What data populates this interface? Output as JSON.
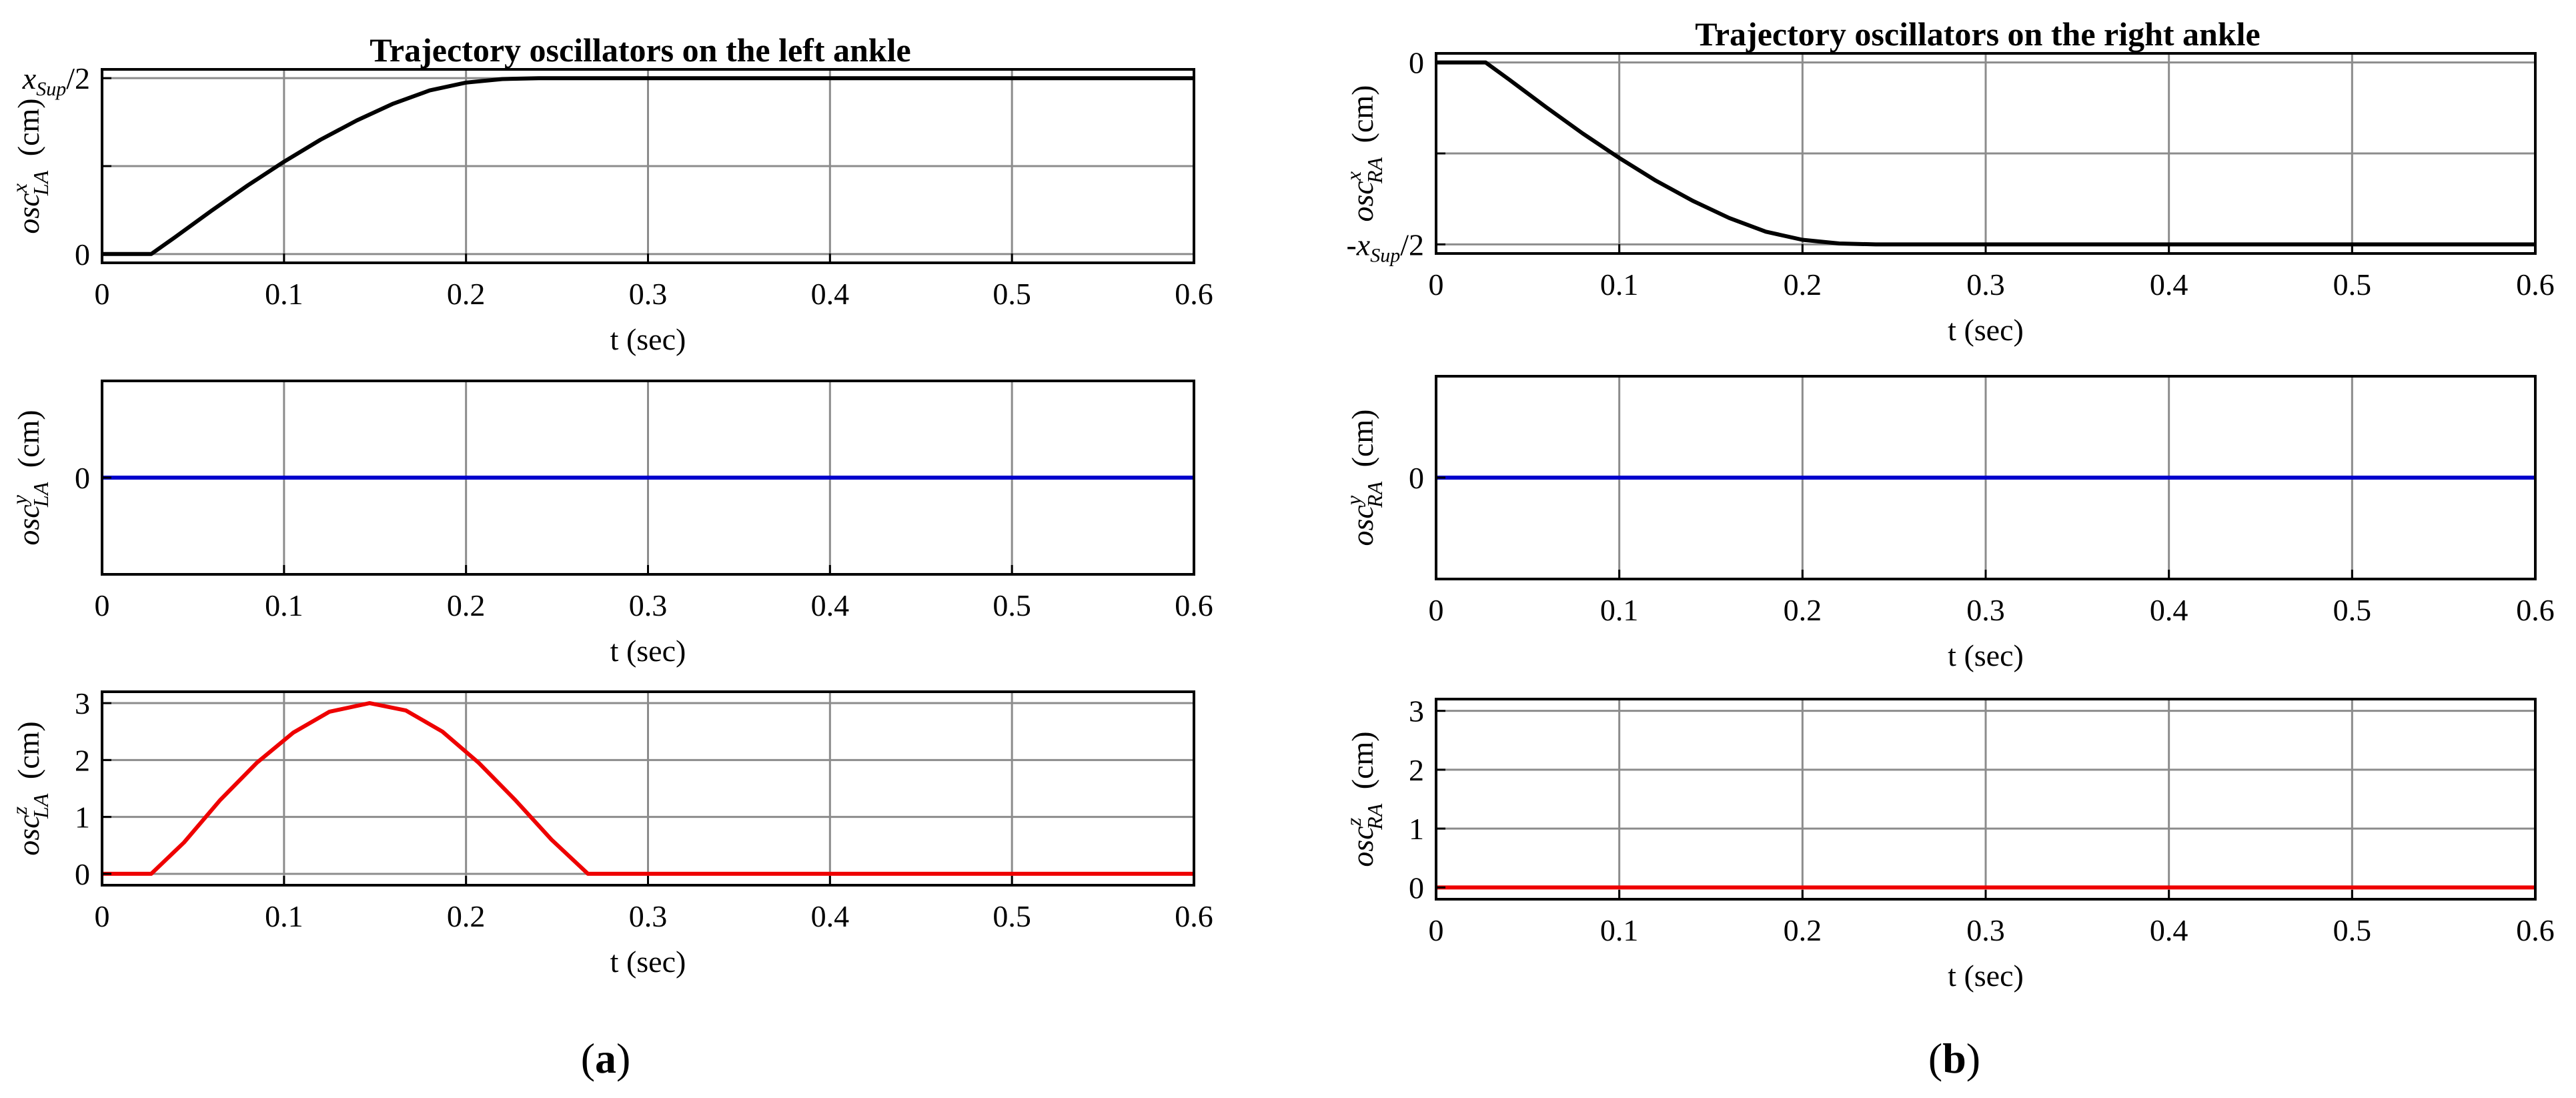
{
  "titles": {
    "left": "Trajectory oscillators on the left ankle",
    "right": "Trajectory oscillators on the right ankle"
  },
  "panel_labels": {
    "left": "a",
    "right": "b"
  },
  "chart_data": [
    {
      "type": "line",
      "title": "Trajectory oscillators on the left ankle",
      "xlabel": "t (sec)",
      "ylabel": {
        "base": "osc",
        "sup": "x",
        "sub": "LA",
        "unit": "(cm)"
      },
      "xlim": [
        0,
        0.6
      ],
      "ylim": [
        -0.05,
        1.05
      ],
      "grid": true,
      "xticks": [
        0,
        0.1,
        0.2,
        0.3,
        0.4,
        0.5,
        0.6
      ],
      "xtick_labels": [
        "0",
        "0.1",
        "0.2",
        "0.3",
        "0.4",
        "0.5",
        "0.6"
      ],
      "yticks": [
        0,
        0.5,
        1
      ],
      "ytick_labels": [
        {
          "text": "0"
        },
        {
          "text": ""
        },
        {
          "prefix": "",
          "var": "x",
          "sub": "Sup",
          "suffix": "/2"
        }
      ],
      "gridlines_y": [
        0,
        0.5,
        1
      ],
      "series": [
        {
          "color": "#000000",
          "x": [
            0,
            0.027,
            0.04,
            0.06,
            0.08,
            0.1,
            0.12,
            0.14,
            0.16,
            0.18,
            0.2,
            0.22,
            0.24,
            0.26,
            0.265,
            0.3,
            0.4,
            0.5,
            0.6
          ],
          "y": [
            0,
            0,
            0.095,
            0.245,
            0.39,
            0.525,
            0.65,
            0.76,
            0.855,
            0.93,
            0.975,
            0.995,
            1.0,
            1.0,
            1.0,
            1.0,
            1.0,
            1.0,
            1.0
          ]
        }
      ]
    },
    {
      "type": "line",
      "xlabel": "t (sec)",
      "ylabel": {
        "base": "osc",
        "sup": "y",
        "sub": "LA",
        "unit": "(cm)"
      },
      "xlim": [
        0,
        0.6
      ],
      "ylim": [
        -1,
        1
      ],
      "grid": true,
      "xticks": [
        0,
        0.1,
        0.2,
        0.3,
        0.4,
        0.5,
        0.6
      ],
      "xtick_labels": [
        "0",
        "0.1",
        "0.2",
        "0.3",
        "0.4",
        "0.5",
        "0.6"
      ],
      "yticks": [
        0
      ],
      "ytick_labels": [
        {
          "text": "0"
        }
      ],
      "gridlines_y": [],
      "series": [
        {
          "color": "#0000cc",
          "x": [
            0,
            0.6
          ],
          "y": [
            0,
            0
          ]
        }
      ]
    },
    {
      "type": "line",
      "xlabel": "t (sec)",
      "ylabel": {
        "base": "osc",
        "sup": "z",
        "sub": "LA",
        "unit": "(cm)"
      },
      "xlim": [
        0,
        0.6
      ],
      "ylim": [
        -0.2,
        3.2
      ],
      "grid": true,
      "xticks": [
        0,
        0.1,
        0.2,
        0.3,
        0.4,
        0.5,
        0.6
      ],
      "xtick_labels": [
        "0",
        "0.1",
        "0.2",
        "0.3",
        "0.4",
        "0.5",
        "0.6"
      ],
      "yticks": [
        0,
        1,
        2,
        3
      ],
      "ytick_labels": [
        {
          "text": "0"
        },
        {
          "text": "1"
        },
        {
          "text": "2"
        },
        {
          "text": "3"
        }
      ],
      "gridlines_y": [
        0,
        1,
        2,
        3
      ],
      "series": [
        {
          "color": "#ee0000",
          "x": [
            0,
            0.027,
            0.045,
            0.065,
            0.085,
            0.105,
            0.125,
            0.147,
            0.167,
            0.187,
            0.207,
            0.227,
            0.247,
            0.267,
            0.3,
            0.4,
            0.5,
            0.6
          ],
          "y": [
            0,
            0,
            0.55,
            1.3,
            1.95,
            2.48,
            2.85,
            3.0,
            2.87,
            2.5,
            1.95,
            1.3,
            0.6,
            0,
            0,
            0,
            0,
            0
          ]
        }
      ]
    },
    {
      "type": "line",
      "title": "Trajectory oscillators on the right ankle",
      "xlabel": "t (sec)",
      "ylabel": {
        "base": "osc",
        "sup": "x",
        "sub": "RA",
        "unit": "(cm)"
      },
      "xlim": [
        0,
        0.6
      ],
      "ylim": [
        -1.05,
        0.05
      ],
      "grid": true,
      "xticks": [
        0,
        0.1,
        0.2,
        0.3,
        0.4,
        0.5,
        0.6
      ],
      "xtick_labels": [
        "0",
        "0.1",
        "0.2",
        "0.3",
        "0.4",
        "0.5",
        "0.6"
      ],
      "yticks": [
        0,
        -0.5,
        -1
      ],
      "ytick_labels": [
        {
          "text": "0"
        },
        {
          "text": ""
        },
        {
          "prefix": "-",
          "var": "x",
          "sub": "Sup",
          "suffix": "/2"
        }
      ],
      "gridlines_y": [
        0,
        -0.5,
        -1
      ],
      "series": [
        {
          "color": "#000000",
          "x": [
            0,
            0.027,
            0.04,
            0.06,
            0.08,
            0.1,
            0.12,
            0.14,
            0.16,
            0.18,
            0.2,
            0.22,
            0.24,
            0.26,
            0.265,
            0.3,
            0.4,
            0.5,
            0.6
          ],
          "y": [
            0,
            0,
            -0.095,
            -0.245,
            -0.39,
            -0.525,
            -0.65,
            -0.76,
            -0.855,
            -0.93,
            -0.975,
            -0.995,
            -1.0,
            -1.0,
            -1.0,
            -1.0,
            -1.0,
            -1.0,
            -1.0
          ]
        }
      ]
    },
    {
      "type": "line",
      "xlabel": "t (sec)",
      "ylabel": {
        "base": "osc",
        "sup": "y",
        "sub": "RA",
        "unit": "(cm)"
      },
      "xlim": [
        0,
        0.6
      ],
      "ylim": [
        -1,
        1
      ],
      "grid": true,
      "xticks": [
        0,
        0.1,
        0.2,
        0.3,
        0.4,
        0.5,
        0.6
      ],
      "xtick_labels": [
        "0",
        "0.1",
        "0.2",
        "0.3",
        "0.4",
        "0.5",
        "0.6"
      ],
      "yticks": [
        0
      ],
      "ytick_labels": [
        {
          "text": "0"
        }
      ],
      "gridlines_y": [],
      "series": [
        {
          "color": "#0000cc",
          "x": [
            0,
            0.6
          ],
          "y": [
            0,
            0
          ]
        }
      ]
    },
    {
      "type": "line",
      "xlabel": "t (sec)",
      "ylabel": {
        "base": "osc",
        "sup": "z",
        "sub": "RA",
        "unit": "(cm)"
      },
      "xlim": [
        0,
        0.6
      ],
      "ylim": [
        -0.2,
        3.2
      ],
      "grid": true,
      "xticks": [
        0,
        0.1,
        0.2,
        0.3,
        0.4,
        0.5,
        0.6
      ],
      "xtick_labels": [
        "0",
        "0.1",
        "0.2",
        "0.3",
        "0.4",
        "0.5",
        "0.6"
      ],
      "yticks": [
        0,
        1,
        2,
        3
      ],
      "ytick_labels": [
        {
          "text": "0"
        },
        {
          "text": "1"
        },
        {
          "text": "2"
        },
        {
          "text": "3"
        }
      ],
      "gridlines_y": [
        0,
        1,
        2,
        3
      ],
      "series": [
        {
          "color": "#ee0000",
          "x": [
            0,
            0.6
          ],
          "y": [
            0,
            0
          ]
        }
      ]
    }
  ]
}
